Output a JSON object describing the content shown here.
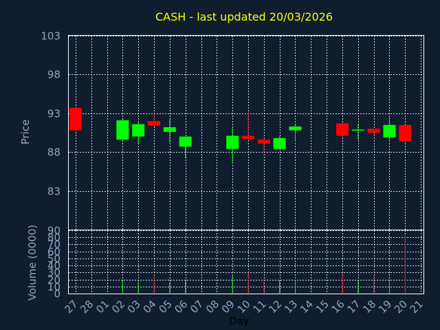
{
  "chart_data": {
    "type": "candlestick",
    "title": "CASH - last updated 20/03/2026",
    "colors": {
      "background": "#0f1d2e",
      "up": "#00ff00",
      "down": "#ff0000",
      "title": "#ffff00",
      "axis_text": "#8fa5c3",
      "grid": "#ffffff"
    },
    "price_panel": {
      "ylabel": "Price",
      "ylim": [
        78,
        103
      ],
      "yticks": [
        103,
        98,
        93,
        88,
        83
      ],
      "ytick_labels": [
        "103",
        "98",
        "93",
        "88",
        "83"
      ]
    },
    "volume_panel": {
      "ylabel": "Volume (0000)",
      "ylim": [
        0,
        90
      ],
      "yticks": [
        0,
        10,
        20,
        30,
        40,
        50,
        60,
        70,
        80,
        90
      ],
      "ytick_labels": [
        "0",
        "10",
        "20",
        "30",
        "40",
        "50",
        "60",
        "70",
        "80",
        "90"
      ]
    },
    "xlabel": "Day",
    "x_labels": [
      "27",
      "28",
      "01",
      "02",
      "03",
      "04",
      "05",
      "06",
      "07",
      "08",
      "09",
      "10",
      "11",
      "12",
      "13",
      "14",
      "15",
      "16",
      "17",
      "18",
      "19",
      "20",
      "21"
    ],
    "candles": [
      {
        "i": 0,
        "open": 93.7,
        "high": 93.7,
        "low": 90.7,
        "close": 90.8,
        "volume": 0
      },
      {
        "i": 3,
        "open": 89.6,
        "high": 92.2,
        "low": 89.3,
        "close": 92.1,
        "volume": 18
      },
      {
        "i": 4,
        "open": 90.0,
        "high": 91.9,
        "low": 89.0,
        "close": 91.6,
        "volume": 16
      },
      {
        "i": 5,
        "open": 92.0,
        "high": 93.3,
        "low": 91.3,
        "close": 91.4,
        "volume": 25
      },
      {
        "i": 6,
        "open": 90.6,
        "high": 92.2,
        "low": 89.2,
        "close": 91.2,
        "volume": 17
      },
      {
        "i": 7,
        "open": 88.7,
        "high": 90.0,
        "low": 87.2,
        "close": 90.0,
        "volume": 20
      },
      {
        "i": 10,
        "open": 88.4,
        "high": 91.1,
        "low": 86.5,
        "close": 90.1,
        "volume": 26
      },
      {
        "i": 11,
        "open": 90.1,
        "high": 93.2,
        "low": 89.5,
        "close": 89.7,
        "volume": 30
      },
      {
        "i": 12,
        "open": 89.6,
        "high": 89.9,
        "low": 87.6,
        "close": 89.1,
        "volume": 21
      },
      {
        "i": 13,
        "open": 88.4,
        "high": 90.0,
        "low": 88.3,
        "close": 89.8,
        "volume": 19
      },
      {
        "i": 14,
        "open": 90.8,
        "high": 91.5,
        "low": 89.4,
        "close": 91.3,
        "volume": 19
      },
      {
        "i": 17,
        "open": 91.7,
        "high": 91.8,
        "low": 90.1,
        "close": 90.1,
        "volume": 26
      },
      {
        "i": 18,
        "open": 90.8,
        "high": 91.6,
        "low": 89.6,
        "close": 90.9,
        "volume": 19
      },
      {
        "i": 19,
        "open": 91.0,
        "high": 91.1,
        "low": 90.2,
        "close": 90.5,
        "volume": 26
      },
      {
        "i": 20,
        "open": 89.9,
        "high": 92.5,
        "low": 89.4,
        "close": 91.5,
        "volume": 19
      },
      {
        "i": 21,
        "open": 91.5,
        "high": 91.5,
        "low": 89.3,
        "close": 89.4,
        "volume": 82
      }
    ]
  }
}
